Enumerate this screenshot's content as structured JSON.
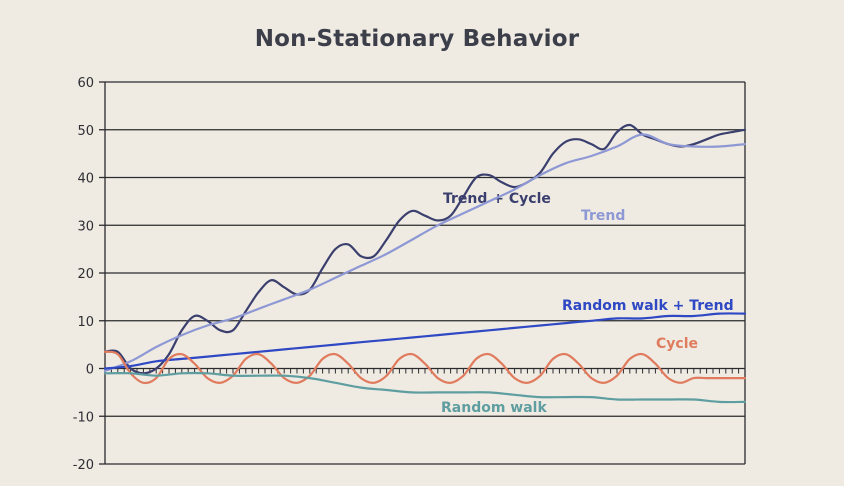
{
  "chart_data": {
    "type": "line",
    "title": "Non-Stationary Behavior",
    "xlabel": "",
    "ylabel": "",
    "xlim": [
      0,
      100
    ],
    "ylim": [
      -20,
      60
    ],
    "yticks": [
      -20,
      -10,
      0,
      10,
      20,
      30,
      40,
      50,
      60
    ],
    "ytick_labels": [
      "-20",
      "-10",
      "0",
      "10",
      "20",
      "30",
      "40",
      "50",
      "60"
    ],
    "grid": "horizontal",
    "series": [
      {
        "name": "Trend + Cycle",
        "label": "Trend + Cycle",
        "color": "#3b3f6e",
        "x": [
          0,
          2,
          4,
          6,
          8,
          10,
          12,
          14,
          16,
          18,
          20,
          22,
          24,
          26,
          28,
          30,
          32,
          34,
          36,
          38,
          40,
          42,
          44,
          46,
          48,
          50,
          52,
          54,
          56,
          58,
          60,
          62,
          64,
          66,
          68,
          70,
          72,
          74,
          76,
          78,
          80,
          82,
          84,
          86,
          88,
          90,
          92,
          94,
          96,
          98,
          100
        ],
        "values": [
          3.5,
          3.5,
          0,
          -1,
          0,
          3,
          8,
          11,
          10,
          8,
          8,
          12,
          16,
          18.5,
          17,
          15.5,
          16.5,
          21,
          25,
          26,
          23.5,
          23.5,
          27,
          31,
          33,
          32,
          31,
          32,
          36,
          40,
          40.5,
          39,
          38,
          39,
          41,
          45,
          47.5,
          48,
          47,
          46,
          49.5,
          51,
          49,
          48,
          47,
          46.5,
          47,
          48,
          49,
          49.5,
          50
        ]
      },
      {
        "name": "Trend",
        "label": "Trend",
        "color": "#8e98d4",
        "x": [
          0,
          4,
          8,
          12,
          16,
          20,
          24,
          28,
          32,
          36,
          40,
          44,
          48,
          52,
          56,
          60,
          64,
          68,
          72,
          76,
          80,
          84,
          88,
          92,
          96,
          100
        ],
        "values": [
          -0.5,
          1.5,
          4.5,
          7,
          9,
          10.5,
          12.5,
          14.5,
          16.5,
          19,
          21.5,
          24,
          27,
          30,
          32.5,
          35,
          37.5,
          40.5,
          43,
          44.5,
          46.5,
          49,
          47,
          46.5,
          46.5,
          47
        ]
      },
      {
        "name": "Random walk + Trend",
        "label": "Random walk + Trend",
        "color": "#2f48c4",
        "x": [
          0,
          4,
          8,
          12,
          16,
          20,
          24,
          28,
          32,
          36,
          40,
          44,
          48,
          52,
          56,
          60,
          64,
          68,
          72,
          76,
          80,
          84,
          88,
          92,
          96,
          100
        ],
        "values": [
          0,
          0.5,
          1.5,
          2,
          2.5,
          3,
          3.5,
          4,
          4.5,
          5,
          5.5,
          6,
          6.5,
          7,
          7.5,
          8,
          8.5,
          9,
          9.5,
          10,
          10.5,
          10.5,
          11,
          11,
          11.5,
          11.5
        ]
      },
      {
        "name": "Cycle",
        "label": "Cycle",
        "color": "#e07b5e",
        "x": [
          0,
          2,
          4,
          6,
          8,
          10,
          12,
          14,
          16,
          18,
          20,
          22,
          24,
          26,
          28,
          30,
          32,
          34,
          36,
          38,
          40,
          42,
          44,
          46,
          48,
          50,
          52,
          54,
          56,
          58,
          60,
          62,
          64,
          66,
          68,
          70,
          72,
          74,
          76,
          78,
          80,
          82,
          84,
          86,
          88,
          90,
          92,
          94,
          96,
          98,
          100
        ],
        "values": [
          3.5,
          3,
          -1,
          -3,
          -2,
          2,
          3,
          1,
          -2,
          -3,
          -1.5,
          2,
          3,
          1,
          -2,
          -3,
          -1.5,
          2,
          3,
          1,
          -2,
          -3,
          -1.5,
          2,
          3,
          1,
          -2,
          -3,
          -1.5,
          2,
          3,
          1,
          -2,
          -3,
          -1.5,
          2,
          3,
          1,
          -2,
          -3,
          -1.5,
          2,
          3,
          1,
          -2,
          -3,
          -2,
          -2,
          -2,
          -2,
          -2
        ]
      },
      {
        "name": "Random walk",
        "label": "Random walk",
        "color": "#5f9ea0",
        "x": [
          0,
          4,
          8,
          12,
          16,
          20,
          24,
          28,
          32,
          36,
          40,
          44,
          48,
          52,
          56,
          60,
          64,
          68,
          72,
          76,
          80,
          84,
          88,
          92,
          96,
          100
        ],
        "values": [
          -1,
          -1,
          -1.5,
          -1,
          -1,
          -1.5,
          -1.5,
          -1.5,
          -2,
          -3,
          -4,
          -4.5,
          -5,
          -5,
          -5,
          -5,
          -5.5,
          -6,
          -6,
          -6,
          -6.5,
          -6.5,
          -6.5,
          -6.5,
          -7,
          -7
        ]
      }
    ]
  }
}
